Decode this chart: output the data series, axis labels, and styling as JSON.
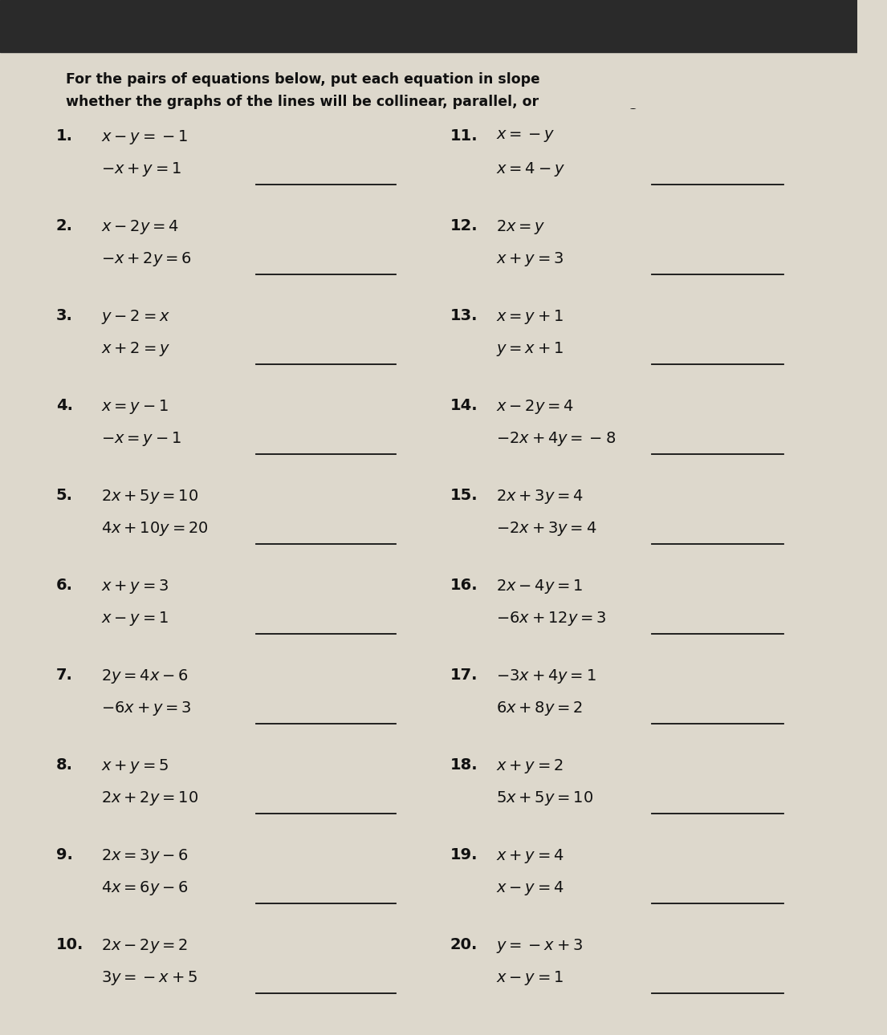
{
  "title_line1": "For the pairs of equations below, put each equation in slope-intercept form, and tell",
  "title_line2": "whether the graphs of the lines will be collinear, parallel, or intersecting.",
  "bg_color": "#ddd8cc",
  "text_color": "#111111",
  "left_problems": [
    {
      "num": "1.",
      "eq1": "$x - y = -1$",
      "eq2": "$-x + y = 1$"
    },
    {
      "num": "2.",
      "eq1": "$x - 2y = 4$",
      "eq2": "$-x + 2y = 6$"
    },
    {
      "num": "3.",
      "eq1": "$y - 2 = x$",
      "eq2": "$x + 2 = y$"
    },
    {
      "num": "4.",
      "eq1": "$x = y - 1$",
      "eq2": "$-x = y - 1$"
    },
    {
      "num": "5.",
      "eq1": "$2x + 5y = 10$",
      "eq2": "$4x + 10y = 20$"
    },
    {
      "num": "6.",
      "eq1": "$x + y = 3$",
      "eq2": "$x - y = 1$"
    },
    {
      "num": "7.",
      "eq1": "$2y = 4x - 6$",
      "eq2": "$-6x + y = 3$"
    },
    {
      "num": "8.",
      "eq1": "$x + y = 5$",
      "eq2": "$2x + 2y = 10$"
    },
    {
      "num": "9.",
      "eq1": "$2x = 3y - 6$",
      "eq2": "$4x = 6y - 6$"
    },
    {
      "num": "10.",
      "eq1": "$2x - 2y = 2$",
      "eq2": "$3y = -x + 5$"
    }
  ],
  "right_problems": [
    {
      "num": "11.",
      "eq1": "$x = -y$",
      "eq2": "$x = 4 - y$"
    },
    {
      "num": "12.",
      "eq1": "$2x = y$",
      "eq2": "$x + y = 3$"
    },
    {
      "num": "13.",
      "eq1": "$x = y + 1$",
      "eq2": "$y = x + 1$"
    },
    {
      "num": "14.",
      "eq1": "$x - 2y = 4$",
      "eq2": "$-2x + 4y = -8$"
    },
    {
      "num": "15.",
      "eq1": "$2x + 3y = 4$",
      "eq2": "$-2x + 3y = 4$"
    },
    {
      "num": "16.",
      "eq1": "$2x - 4y = 1$",
      "eq2": "$-6x + 12y = 3$"
    },
    {
      "num": "17.",
      "eq1": "$-3x + 4y = 1$",
      "eq2": "$6x + 8y = 2$"
    },
    {
      "num": "18.",
      "eq1": "$x + y = 2$",
      "eq2": "$5x + 5y = 10$"
    },
    {
      "num": "19.",
      "eq1": "$x + y = 4$",
      "eq2": "$x - y = 4$"
    },
    {
      "num": "20.",
      "eq1": "$y = -x + 3$",
      "eq2": "$x - y = 1$"
    }
  ],
  "line_color": "#111111",
  "font_size_title": 12.5,
  "font_size_num": 14,
  "font_size_eq": 14
}
